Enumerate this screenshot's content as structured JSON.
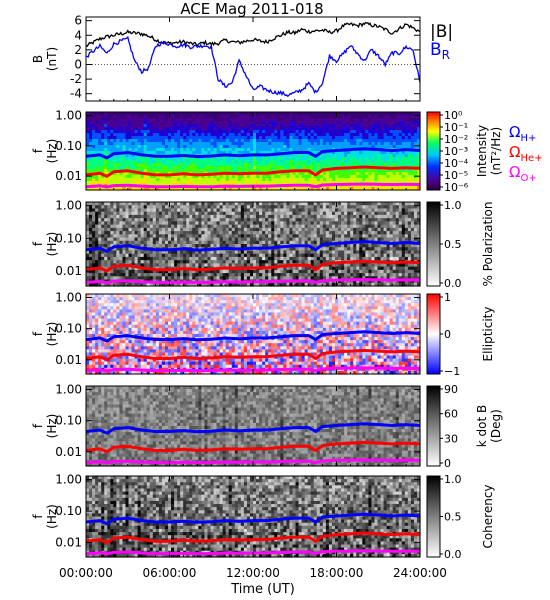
{
  "title": "ACE Mag 2011-018",
  "xaxis": {
    "label": "Time (UT)",
    "ticks": [
      "00:00:00",
      "06:00:00",
      "12:00:00",
      "18:00:00",
      "24:00:00"
    ],
    "range_hours": [
      0,
      24
    ]
  },
  "colors": {
    "babs": "#000000",
    "br": "#0000ff",
    "h_plus": "#0000ff",
    "he_plus": "#ff0000",
    "o_plus": "#ff00ff"
  },
  "chart_data": [
    {
      "type": "line",
      "panel": "field",
      "ylabel_top": "B",
      "ylabel_unit": "(nT)",
      "ylim": [
        -5,
        6.5
      ],
      "yticks": [
        "6",
        "4",
        "2",
        "0",
        "-2",
        "-4"
      ],
      "ytick_values": [
        6,
        4,
        2,
        0,
        -2,
        -4
      ],
      "series": [
        {
          "name": "|B|",
          "x": [
            0,
            0.5,
            1,
            1.5,
            2,
            2.5,
            3,
            3.5,
            4,
            4.5,
            5,
            5.5,
            6,
            6.5,
            7,
            7.5,
            8,
            8.5,
            9,
            9.5,
            10,
            10.5,
            11,
            11.5,
            12,
            12.5,
            13,
            13.5,
            14,
            14.5,
            15,
            15.5,
            16,
            16.5,
            17,
            17.5,
            18,
            18.5,
            19,
            19.5,
            20,
            20.5,
            21,
            21.5,
            22,
            22.5,
            23,
            23.5,
            24
          ],
          "values": [
            2.5,
            3.0,
            3.5,
            3.8,
            4.0,
            4.2,
            4.4,
            4.3,
            4.2,
            3.9,
            3.4,
            3.0,
            2.9,
            3.0,
            3.1,
            2.9,
            2.7,
            3.0,
            2.8,
            2.9,
            3.3,
            3.1,
            3.0,
            3.2,
            3.4,
            3.2,
            3.1,
            3.6,
            4.0,
            4.4,
            4.3,
            4.8,
            4.5,
            4.6,
            4.7,
            4.4,
            4.6,
            5.3,
            5.5,
            5.3,
            5.6,
            5.4,
            5.2,
            4.8,
            4.3,
            4.9,
            5.5,
            5.0,
            4.5
          ]
        },
        {
          "name": "B_R",
          "x": [
            0,
            0.5,
            1,
            1.5,
            2,
            2.5,
            3,
            3.5,
            4,
            4.5,
            5,
            5.5,
            6,
            6.5,
            7,
            7.5,
            8,
            8.5,
            9,
            9.5,
            10,
            10.5,
            11,
            11.5,
            12,
            12.5,
            13,
            13.5,
            14,
            14.5,
            15,
            15.5,
            16,
            16.5,
            17,
            17.5,
            18,
            18.5,
            19,
            19.5,
            20,
            20.5,
            21,
            21.5,
            22,
            22.5,
            23,
            23.5,
            24
          ],
          "values": [
            1.0,
            1.8,
            2.5,
            1.5,
            2.8,
            3.2,
            3.5,
            0.5,
            -1.0,
            -0.5,
            2.5,
            3.0,
            2.8,
            2.5,
            2.7,
            2.4,
            2.5,
            2.6,
            2.4,
            -2.0,
            -3.0,
            -2.5,
            0.5,
            -1.5,
            -3.5,
            -3.0,
            -3.5,
            -3.8,
            -3.9,
            -4.2,
            -3.9,
            -3.5,
            -2.6,
            -3.8,
            -2.5,
            1.2,
            0.5,
            1.5,
            2.6,
            1.5,
            0.5,
            2.0,
            1.2,
            0.0,
            1.6,
            1.5,
            2.4,
            2.0,
            -2.5
          ]
        }
      ],
      "legend": [
        {
          "label": "|B|",
          "color_key": "babs"
        },
        {
          "label": "B",
          "sub": "R",
          "color_key": "br"
        }
      ]
    },
    {
      "type": "heatmap",
      "panel": "intensity",
      "ylabel_top": "f",
      "ylabel_unit": "(Hz)",
      "ylog": true,
      "ylim": [
        0.0035,
        1.3
      ],
      "yticks": [
        "1.00",
        "0.10",
        "0.01"
      ],
      "ytick_values": [
        1,
        0.1,
        0.01
      ],
      "colorbar": {
        "label_line1": "Intensity",
        "label_line2": "(nT²/Hz)",
        "ticks": [
          "10⁰",
          "10⁻¹",
          "10⁻²",
          "10⁻³",
          "10⁻⁴",
          "10⁻⁵",
          "10⁻⁶"
        ],
        "tick_values": [
          0,
          -1,
          -2,
          -3,
          -4,
          -5,
          -6
        ],
        "scale": "rainbow"
      },
      "legend": [
        {
          "label": "Ω",
          "sub": "H+",
          "color_key": "h_plus"
        },
        {
          "label": "Ω",
          "sub": "He+",
          "color_key": "he_plus"
        },
        {
          "label": "Ω",
          "sub": "O+",
          "color_key": "o_plus"
        }
      ]
    },
    {
      "type": "heatmap",
      "panel": "polarization",
      "ylabel_top": "f",
      "ylabel_unit": "(Hz)",
      "ylog": true,
      "ylim": [
        0.0035,
        1.3
      ],
      "yticks": [
        "1.00",
        "0.10",
        "0.01"
      ],
      "ytick_values": [
        1,
        0.1,
        0.01
      ],
      "colorbar": {
        "label_line1": "% Polarization",
        "label_line2": "",
        "ticks": [
          "1.0",
          "0.5",
          "0.0"
        ],
        "tick_values": [
          1.0,
          0.5,
          0.0
        ],
        "scale": "gray"
      }
    },
    {
      "type": "heatmap",
      "panel": "ellipticity",
      "ylabel_top": "f",
      "ylabel_unit": "(Hz)",
      "ylog": true,
      "ylim": [
        0.0035,
        1.3
      ],
      "yticks": [
        "1.00",
        "0.10",
        "0.01"
      ],
      "ytick_values": [
        1,
        0.1,
        0.01
      ],
      "colorbar": {
        "label_line1": "Ellipticity",
        "label_line2": "",
        "ticks": [
          "1",
          "0",
          "−1"
        ],
        "tick_values": [
          1,
          0,
          -1
        ],
        "scale": "bwr"
      }
    },
    {
      "type": "heatmap",
      "panel": "kdotb",
      "ylabel_top": "f",
      "ylabel_unit": "(Hz)",
      "ylog": true,
      "ylim": [
        0.0035,
        1.3
      ],
      "yticks": [
        "1.00",
        "0.10",
        "0.01"
      ],
      "ytick_values": [
        1,
        0.1,
        0.01
      ],
      "colorbar": {
        "label_line1": "k dot B",
        "label_line2": "(Deg)",
        "ticks": [
          "90",
          "60",
          "30",
          "0"
        ],
        "tick_values": [
          90,
          60,
          30,
          0
        ],
        "scale": "gray"
      }
    },
    {
      "type": "heatmap",
      "panel": "coherency",
      "ylabel_top": "f",
      "ylabel_unit": "(Hz)",
      "ylog": true,
      "ylim": [
        0.0035,
        1.3
      ],
      "yticks": [
        "1.00",
        "0.10",
        "0.01"
      ],
      "ytick_values": [
        1,
        0.1,
        0.01
      ],
      "colorbar": {
        "label_line1": "Coherency",
        "label_line2": "",
        "ticks": [
          "1.0",
          "0.5",
          "0.0"
        ],
        "tick_values": [
          1.0,
          0.5,
          0.0
        ],
        "scale": "gray"
      }
    }
  ],
  "gyrofrequency_lines": {
    "x": [
      0,
      1,
      1.5,
      2,
      3,
      4,
      5,
      6,
      7,
      8,
      9,
      10,
      11,
      12,
      13,
      14,
      15,
      16,
      16.5,
      17,
      18,
      19,
      20,
      21,
      22,
      23,
      24
    ],
    "h_plus_hz": [
      0.045,
      0.05,
      0.04,
      0.055,
      0.06,
      0.05,
      0.045,
      0.045,
      0.048,
      0.044,
      0.046,
      0.05,
      0.047,
      0.05,
      0.05,
      0.055,
      0.06,
      0.06,
      0.045,
      0.065,
      0.07,
      0.075,
      0.08,
      0.075,
      0.07,
      0.075,
      0.07
    ],
    "he_plus_hz": [
      0.011,
      0.0125,
      0.01,
      0.014,
      0.015,
      0.0125,
      0.011,
      0.011,
      0.012,
      0.011,
      0.0115,
      0.0125,
      0.012,
      0.0125,
      0.0125,
      0.014,
      0.015,
      0.015,
      0.011,
      0.016,
      0.018,
      0.019,
      0.02,
      0.019,
      0.018,
      0.019,
      0.018
    ],
    "o_plus_hz": [
      0.0045,
      0.0048,
      0.0044,
      0.0049,
      0.005,
      0.0047,
      0.0045,
      0.0045,
      0.0046,
      0.0045,
      0.0045,
      0.0047,
      0.0046,
      0.0047,
      0.0047,
      0.0049,
      0.005,
      0.005,
      0.0045,
      0.0051,
      0.0053,
      0.0054,
      0.0055,
      0.0054,
      0.0053,
      0.0054,
      0.0053
    ]
  }
}
